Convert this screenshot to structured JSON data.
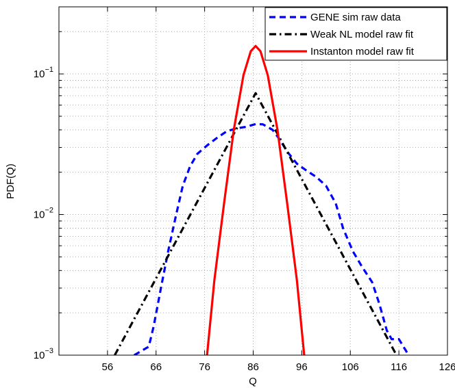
{
  "chart_data": {
    "type": "line",
    "title": "",
    "xlabel": "Q",
    "ylabel": "PDF(Q)",
    "xlim": [
      46,
      126
    ],
    "ylim": [
      0.001,
      0.3
    ],
    "yscale": "log",
    "grid": true,
    "legend_position": "top-right",
    "x_ticks": [
      56,
      66,
      76,
      86,
      96,
      106,
      116,
      126
    ],
    "x_tick_labels": [
      "56",
      "66",
      "76",
      "86",
      "96",
      "106",
      "116",
      "126"
    ],
    "y_ticks": [
      {
        "value": 0.001,
        "base": "10",
        "exp": "−3"
      },
      {
        "value": 0.01,
        "base": "10",
        "exp": "−2"
      },
      {
        "value": 0.1,
        "base": "10",
        "exp": "−1"
      }
    ],
    "series": [
      {
        "name": "GENE sim raw data",
        "color": "#0000ff",
        "style": "dashed",
        "points": [
          [
            61.5,
            0.001
          ],
          [
            64.5,
            0.00115
          ],
          [
            65.5,
            0.0016
          ],
          [
            67,
            0.003
          ],
          [
            68.5,
            0.0055
          ],
          [
            70,
            0.0095
          ],
          [
            71.5,
            0.016
          ],
          [
            73,
            0.022
          ],
          [
            74.5,
            0.027
          ],
          [
            76.5,
            0.031
          ],
          [
            78.5,
            0.035
          ],
          [
            80.5,
            0.039
          ],
          [
            82.5,
            0.041
          ],
          [
            84.5,
            0.042
          ],
          [
            86.5,
            0.044
          ],
          [
            88,
            0.0438
          ],
          [
            90,
            0.04
          ],
          [
            91.5,
            0.034
          ],
          [
            93,
            0.028
          ],
          [
            95,
            0.023
          ],
          [
            97,
            0.0205
          ],
          [
            99,
            0.0185
          ],
          [
            101,
            0.016
          ],
          [
            103,
            0.012
          ],
          [
            104.5,
            0.008
          ],
          [
            106.5,
            0.0055
          ],
          [
            108.5,
            0.0042
          ],
          [
            110.5,
            0.0033
          ],
          [
            112,
            0.0023
          ],
          [
            113.5,
            0.0015
          ],
          [
            114.5,
            0.0013
          ],
          [
            116,
            0.0013
          ],
          [
            118,
            0.001
          ]
        ]
      },
      {
        "name": "Weak NL model raw fit",
        "color": "#000000",
        "style": "dashdot",
        "points": [
          [
            57.5,
            0.001
          ],
          [
            86.5,
            0.073
          ],
          [
            115.5,
            0.001
          ]
        ]
      },
      {
        "name": "Instanton model raw fit",
        "color": "#ff0000",
        "style": "solid",
        "points": [
          [
            76.5,
            0.001
          ],
          [
            78,
            0.0034
          ],
          [
            80,
            0.012
          ],
          [
            82,
            0.04
          ],
          [
            84,
            0.098
          ],
          [
            85.5,
            0.145
          ],
          [
            86.5,
            0.158
          ],
          [
            87.5,
            0.145
          ],
          [
            89,
            0.098
          ],
          [
            91,
            0.04
          ],
          [
            93,
            0.012
          ],
          [
            95,
            0.0034
          ],
          [
            96.5,
            0.001
          ]
        ]
      }
    ]
  }
}
